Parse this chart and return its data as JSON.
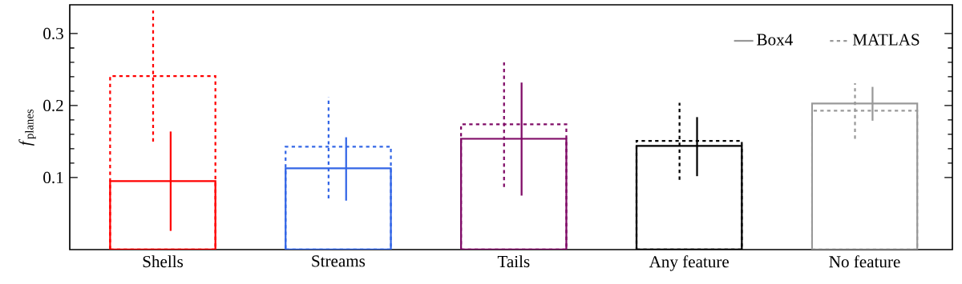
{
  "chart_data": {
    "type": "bar",
    "ylabel": "*f*$_{planes}$",
    "categories": [
      "Shells",
      "Streams",
      "Tails",
      "Any feature",
      "No feature"
    ],
    "series": [
      {
        "name": "Box4",
        "color": "#999999",
        "line_style": "solid",
        "colors": [
          "#ff0000",
          "#3366e6",
          "#7f0a66",
          "#000000",
          "#999999"
        ],
        "values": [
          0.095,
          0.113,
          0.154,
          0.144,
          0.203
        ],
        "errors": [
          [
            0.026,
            0.164
          ],
          [
            0.068,
            0.156
          ],
          [
            0.075,
            0.232
          ],
          [
            0.102,
            0.184
          ],
          [
            0.179,
            0.226
          ]
        ]
      },
      {
        "name": "MATLAS",
        "color": "#999999",
        "line_style": "dashed",
        "colors": [
          "#ff0000",
          "#3366e6",
          "#7f0a66",
          "#000000",
          "#999999"
        ],
        "values": [
          0.241,
          0.143,
          0.174,
          0.151,
          0.193
        ],
        "errors": [
          [
            0.15,
            0.332
          ],
          [
            0.071,
            0.212
          ],
          [
            0.087,
            0.26
          ],
          [
            0.097,
            0.204
          ],
          [
            0.154,
            0.231
          ]
        ]
      }
    ],
    "ylim": [
      0,
      0.34
    ],
    "yticks": [
      0.1,
      0.2,
      0.3
    ],
    "legend": "top right"
  }
}
